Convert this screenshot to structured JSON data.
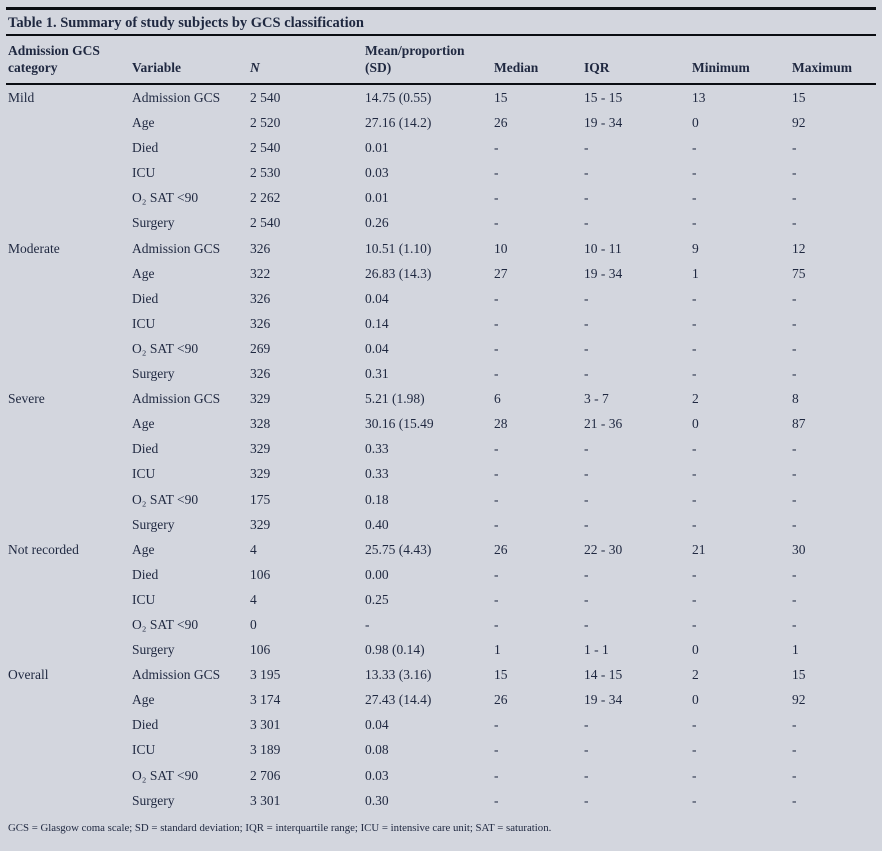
{
  "title": "Table 1. Summary of study subjects by GCS classification",
  "footnote": "GCS = Glasgow coma scale; SD = standard deviation; IQR = interquartile range; ICU = intensive care unit; SAT = saturation.",
  "colors": {
    "background": "#d3d6de",
    "text": "#1f2840",
    "rule": "#0a0d12"
  },
  "table": {
    "columns": [
      {
        "lines": [
          "Admission GCS",
          "category"
        ],
        "italic": false
      },
      {
        "lines": [
          "Variable"
        ],
        "italic": false
      },
      {
        "lines": [
          "N"
        ],
        "italic": true
      },
      {
        "lines": [
          "Mean/proportion",
          "(SD)"
        ],
        "italic": false
      },
      {
        "lines": [
          "Median"
        ],
        "italic": false
      },
      {
        "lines": [
          "IQR"
        ],
        "italic": false
      },
      {
        "lines": [
          "Minimum"
        ],
        "italic": false
      },
      {
        "lines": [
          "Maximum"
        ],
        "italic": false
      }
    ],
    "groups": [
      {
        "category": "Mild",
        "rows": [
          {
            "variable": "Admission GCS",
            "n": "2 540",
            "mean": "14.75 (0.55)",
            "median": "15",
            "iqr": "15 - 15",
            "min": "13",
            "max": "15"
          },
          {
            "variable": "Age",
            "n": "2 520",
            "mean": "27.16 (14.2)",
            "median": "26",
            "iqr": "19 - 34",
            "min": "0",
            "max": "92"
          },
          {
            "variable": "Died",
            "n": "2 540",
            "mean": "0.01",
            "median": "-",
            "iqr": "-",
            "min": "-",
            "max": "-"
          },
          {
            "variable": "ICU",
            "n": "2 530",
            "mean": "0.03",
            "median": "-",
            "iqr": "-",
            "min": "-",
            "max": "-"
          },
          {
            "variable": "O₂ SAT <90",
            "n": "2 262",
            "mean": "0.01",
            "median": "-",
            "iqr": "-",
            "min": "-",
            "max": "-"
          },
          {
            "variable": "Surgery",
            "n": "2 540",
            "mean": "0.26",
            "median": "-",
            "iqr": "-",
            "min": "-",
            "max": "-"
          }
        ]
      },
      {
        "category": "Moderate",
        "rows": [
          {
            "variable": "Admission GCS",
            "n": "326",
            "mean": "10.51 (1.10)",
            "median": "10",
            "iqr": "10 - 11",
            "min": "9",
            "max": "12"
          },
          {
            "variable": "Age",
            "n": "322",
            "mean": "26.83 (14.3)",
            "median": "27",
            "iqr": "19 - 34",
            "min": "1",
            "max": "75"
          },
          {
            "variable": "Died",
            "n": "326",
            "mean": "0.04",
            "median": "-",
            "iqr": "-",
            "min": "-",
            "max": "-"
          },
          {
            "variable": "ICU",
            "n": "326",
            "mean": "0.14",
            "median": "-",
            "iqr": "-",
            "min": "-",
            "max": "-"
          },
          {
            "variable": "O₂ SAT <90",
            "n": "269",
            "mean": "0.04",
            "median": "-",
            "iqr": "-",
            "min": "-",
            "max": "-"
          },
          {
            "variable": "Surgery",
            "n": "326",
            "mean": "0.31",
            "median": "-",
            "iqr": "-",
            "min": "-",
            "max": "-"
          }
        ]
      },
      {
        "category": "Severe",
        "rows": [
          {
            "variable": "Admission GCS",
            "n": "329",
            "mean": "5.21 (1.98)",
            "median": "6",
            "iqr": "3 - 7",
            "min": "2",
            "max": "8"
          },
          {
            "variable": "Age",
            "n": "328",
            "mean": "30.16 (15.49",
            "median": "28",
            "iqr": "21 - 36",
            "min": "0",
            "max": "87"
          },
          {
            "variable": "Died",
            "n": "329",
            "mean": "0.33",
            "median": "-",
            "iqr": "-",
            "min": "-",
            "max": "-"
          },
          {
            "variable": "ICU",
            "n": "329",
            "mean": "0.33",
            "median": "-",
            "iqr": "-",
            "min": "-",
            "max": "-"
          },
          {
            "variable": "O₂ SAT <90",
            "n": "175",
            "mean": "0.18",
            "median": "-",
            "iqr": "-",
            "min": "-",
            "max": "-"
          },
          {
            "variable": "Surgery",
            "n": "329",
            "mean": "0.40",
            "median": "-",
            "iqr": "-",
            "min": "-",
            "max": "-"
          }
        ]
      },
      {
        "category": "Not recorded",
        "rows": [
          {
            "variable": "Age",
            "n": "4",
            "mean": "25.75 (4.43)",
            "median": "26",
            "iqr": "22 - 30",
            "min": "21",
            "max": "30"
          },
          {
            "variable": "Died",
            "n": "106",
            "mean": "0.00",
            "median": "-",
            "iqr": "-",
            "min": "-",
            "max": "-"
          },
          {
            "variable": "ICU",
            "n": "4",
            "mean": "0.25",
            "median": "-",
            "iqr": "-",
            "min": "-",
            "max": "-"
          },
          {
            "variable": "O₂ SAT <90",
            "n": "0",
            "mean": "-",
            "median": "-",
            "iqr": "-",
            "min": "-",
            "max": "-"
          },
          {
            "variable": "Surgery",
            "n": "106",
            "mean": "0.98 (0.14)",
            "median": "1",
            "iqr": "1 - 1",
            "min": "0",
            "max": "1"
          }
        ]
      },
      {
        "category": "Overall",
        "rows": [
          {
            "variable": "Admission GCS",
            "n": "3 195",
            "mean": "13.33 (3.16)",
            "median": "15",
            "iqr": "14 - 15",
            "min": "2",
            "max": "15"
          },
          {
            "variable": "Age",
            "n": "3 174",
            "mean": "27.43 (14.4)",
            "median": "26",
            "iqr": "19 - 34",
            "min": "0",
            "max": "92"
          },
          {
            "variable": "Died",
            "n": "3 301",
            "mean": "0.04",
            "median": "-",
            "iqr": "-",
            "min": "-",
            "max": "-"
          },
          {
            "variable": "ICU",
            "n": "3 189",
            "mean": "0.08",
            "median": "-",
            "iqr": "-",
            "min": "-",
            "max": "-"
          },
          {
            "variable": "O₂ SAT <90",
            "n": "2 706",
            "mean": "0.03",
            "median": "-",
            "iqr": "-",
            "min": "-",
            "max": "-"
          },
          {
            "variable": "Surgery",
            "n": "3 301",
            "mean": "0.30",
            "median": "-",
            "iqr": "-",
            "min": "-",
            "max": "-"
          }
        ]
      }
    ]
  }
}
